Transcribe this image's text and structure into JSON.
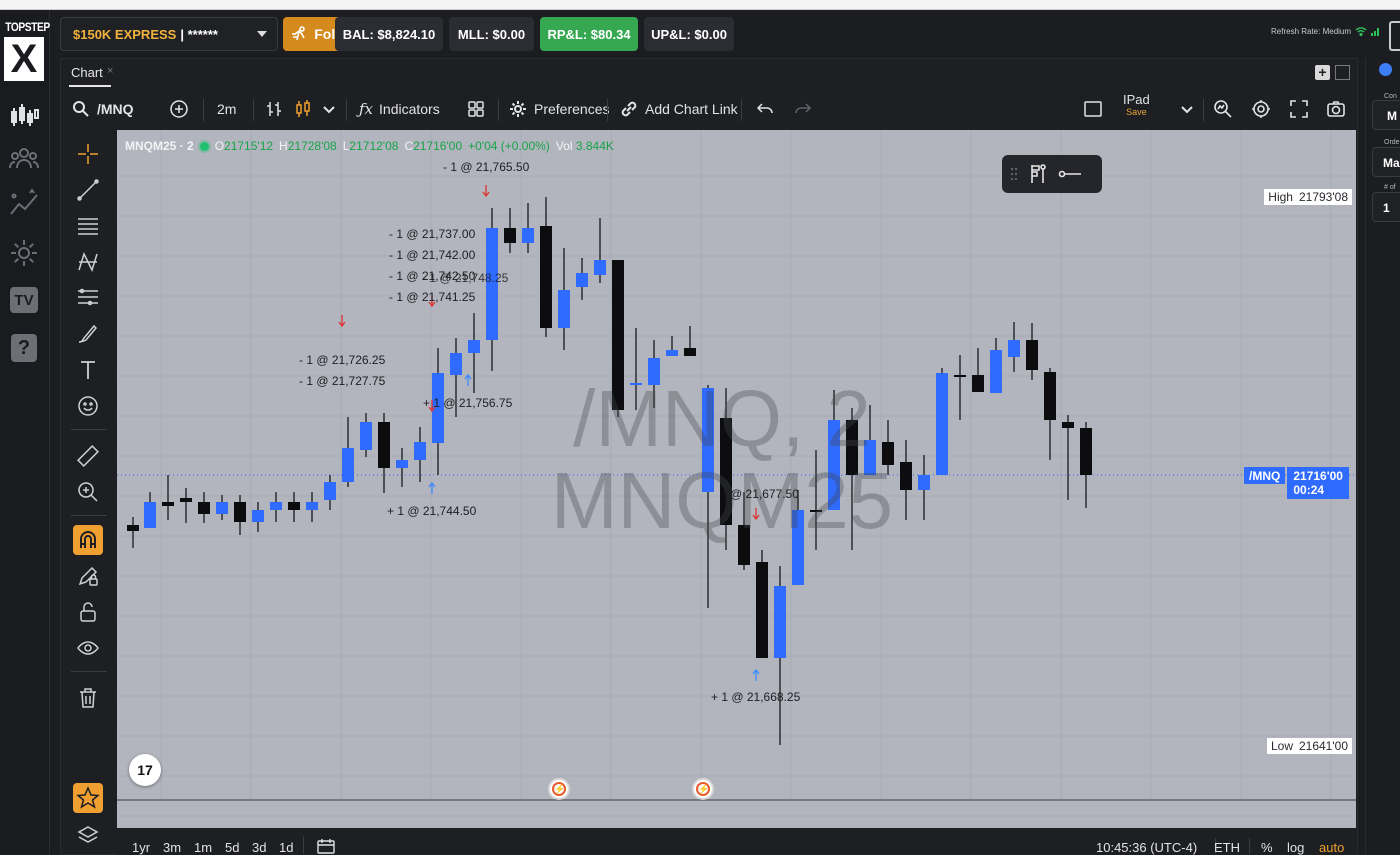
{
  "header": {
    "account_name": "$150K EXPRESS",
    "account_mask": "| ******",
    "follower_label": "Follower",
    "balance": "BAL: $8,824.10",
    "mll": "MLL: $0.00",
    "rpl": "RP&L: $80.34",
    "upl": "UP&L: $0.00",
    "refresh_rate": "Refresh Rate: Medium"
  },
  "rail": {
    "logo_word": "TOPSTEP",
    "logo_mark": "X",
    "tv_badge": "TV",
    "help_badge": "?"
  },
  "panel": {
    "tab_label": "Chart",
    "tab_close": "×"
  },
  "toolbar": {
    "symbol": "/MNQ",
    "interval": "2m",
    "indicators_label": "Indicators",
    "preferences_label": "Preferences",
    "add_chart_link_label": "Add Chart Link",
    "layout_name": "IPad",
    "layout_save": "Save"
  },
  "chart": {
    "legend": {
      "symbol": "MNQM25 · 2",
      "open_key": "O",
      "open": "21715'12",
      "high_key": "H",
      "high": "21728'08",
      "low_key": "L",
      "low": "21712'08",
      "close_key": "C",
      "close": "21716'00",
      "change": "+0'04 (+0.00%)",
      "vol_key": "Vol",
      "vol": "3.844K"
    },
    "watermark_line1": "/MNQ, 2",
    "watermark_line2": "MNQM25",
    "high_tag_name": "High",
    "high_tag_value": "21793'08",
    "low_tag_name": "Low",
    "low_tag_value": "21641'00",
    "price_symbol": "/MNQ",
    "price_value": "21716'00",
    "price_countdown": "00:24",
    "trade_labels": [
      "- 1 @ 21,765.50",
      "- 1 @ 21,737.00",
      "- 1 @ 21,742.00",
      "- 1 @ 21,742.50",
      "- 1 @ 21,741.25",
      "- 1 @ 21,748.25",
      "- 1 @ 21,726.25",
      "- 1 @ 21,727.75",
      "+ 1 @ 21,756.75",
      "+ 1 @ 21,744.50",
      "@ 21,677.50",
      "+ 1 @ 21,668.25"
    ],
    "tv_logo": "17",
    "colors": {
      "up": "#2f6bff",
      "down": "#0d0d0f",
      "background": "#b2b5bd",
      "accent": "#f0a030"
    }
  },
  "chart_data": {
    "type": "candlestick",
    "symbol": "MNQM25",
    "interval": "2m",
    "y_high": 21793.5,
    "y_low": 21641.0,
    "last": 21716.0
  },
  "bottom": {
    "ranges": [
      "1yr",
      "3m",
      "1m",
      "5d",
      "3d",
      "1d"
    ],
    "clock": "10:45:36 (UTC-4)",
    "session": "ETH",
    "pct": "%",
    "log": "log",
    "auto": "auto"
  },
  "right_panel": {
    "label1": "Con",
    "field1": "M",
    "label2": "Orde",
    "field2": "Ma",
    "label3": "# of",
    "field3": "1"
  }
}
